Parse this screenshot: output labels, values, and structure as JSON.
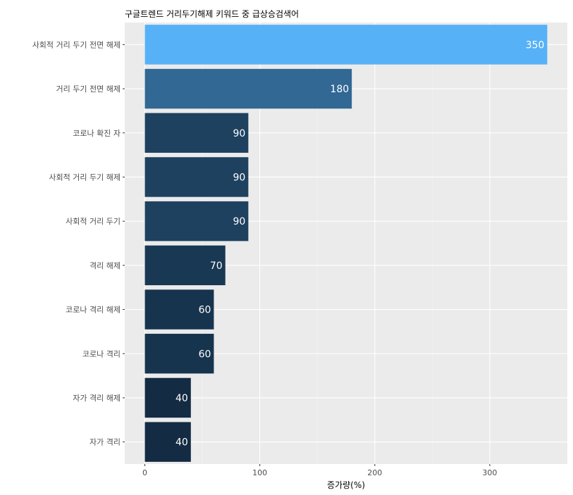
{
  "chart_data": {
    "type": "bar",
    "orientation": "horizontal",
    "title": "구글트렌드 거리두기해제 키워드 중 급상승검색어",
    "xlabel": "증가량(%)",
    "ylabel": "",
    "categories": [
      "사회적 거리 두기 전면 해제",
      "거리 두기 전면 해제",
      "코로나 확진 자",
      "사회적 거리 두기 해제",
      "사회적 거리 두기",
      "격리 해제",
      "코로나 격리 해제",
      "코로나 격리",
      "자가 격리 해제",
      "자가 격리"
    ],
    "values": [
      350,
      180,
      90,
      90,
      90,
      70,
      60,
      60,
      40,
      40
    ],
    "data_labels": [
      "350",
      "180",
      "90",
      "90",
      "90",
      "70",
      "60",
      "60",
      "40",
      "40"
    ],
    "xlim": [
      -17.5,
      367.5
    ],
    "xticks": [
      0,
      100,
      200,
      300
    ],
    "xtick_labels": [
      "0",
      "100",
      "200",
      "300"
    ],
    "grid": true,
    "legend": "none",
    "colors": {
      "panel_background": "#EBEBEB",
      "grid_major": "#FFFFFF",
      "grid_minor": "#F5F5F5",
      "bar_low": "#132B43",
      "bar_high": "#56B1F7",
      "label_text": "#FFFFFF"
    }
  }
}
